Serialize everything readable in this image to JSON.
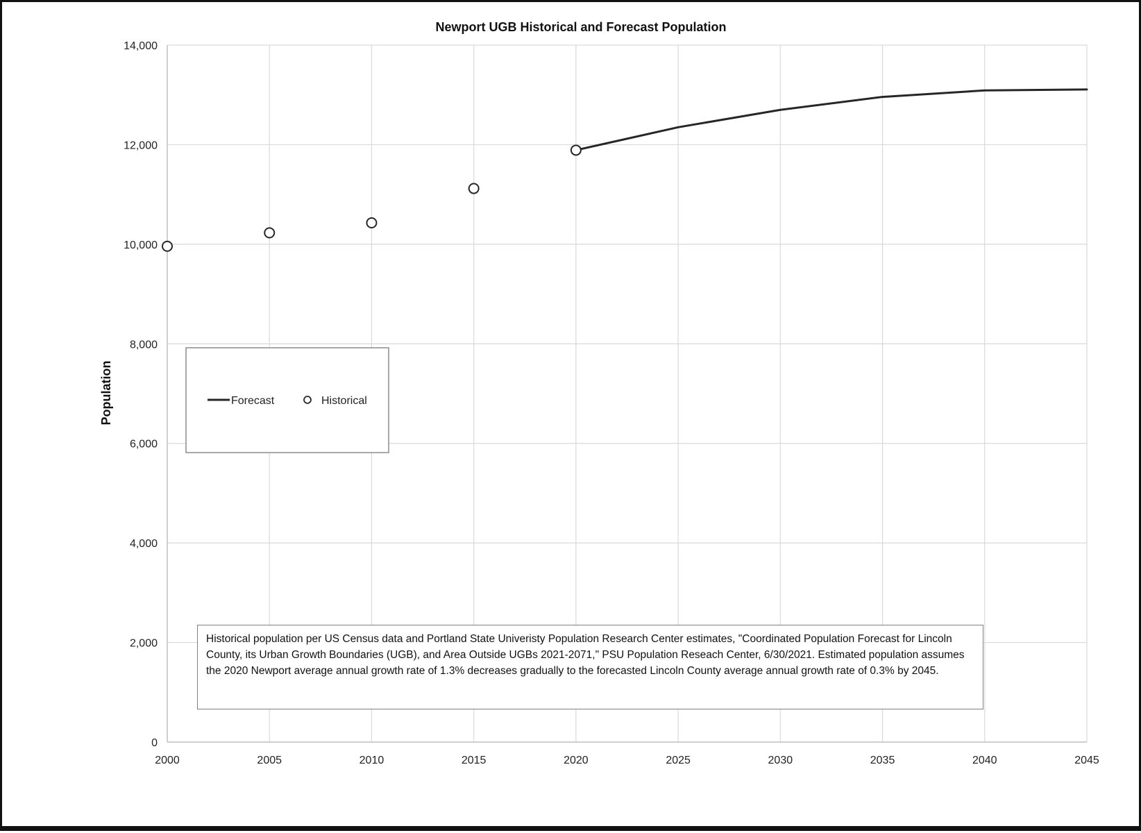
{
  "chart_data": {
    "type": "line",
    "title": "Newport UGB Historical and Forecast Population",
    "xlabel": "",
    "ylabel": "Population",
    "xlim": [
      2000,
      2045
    ],
    "ylim": [
      0,
      14000
    ],
    "x_ticks": [
      2000,
      2005,
      2010,
      2015,
      2020,
      2025,
      2030,
      2035,
      2040,
      2045
    ],
    "x_tick_labels": [
      "2000",
      "2005",
      "2010",
      "2015",
      "2020",
      "2025",
      "2030",
      "2035",
      "2040",
      "2045"
    ],
    "y_ticks": [
      0,
      2000,
      4000,
      6000,
      8000,
      10000,
      12000,
      14000
    ],
    "y_tick_labels": [
      "0",
      "2,000",
      "4,000",
      "6,000",
      "8,000",
      "10,000",
      "12,000",
      "14,000"
    ],
    "grid": true,
    "legend_position": "middle-left",
    "series": [
      {
        "name": "Forecast",
        "style": "line",
        "color": "#262626",
        "x": [
          2020,
          2025,
          2030,
          2035,
          2040,
          2045
        ],
        "y": [
          11890,
          12350,
          12700,
          12960,
          13090,
          13110
        ]
      },
      {
        "name": "Historical",
        "style": "marker",
        "marker": "open-circle",
        "color": "#262626",
        "x": [
          2000,
          2005,
          2010,
          2015,
          2020
        ],
        "y": [
          9960,
          10230,
          10430,
          11120,
          11890
        ]
      }
    ],
    "annotation": "Historical population per US Census data and Portland State Univeristy Population Research Center estimates, \"Coordinated Population Forecast for Lincoln County, its Urban Growth Boundaries (UGB), and Area Outside UGBs 2021-2071,\" PSU Population Reseach Center, 6/30/2021. Estimated population assumes the 2020 Newport average annual growth rate of 1.3% decreases gradually to the forecasted Lincoln County average annual growth rate of 0.3% by 2045."
  }
}
